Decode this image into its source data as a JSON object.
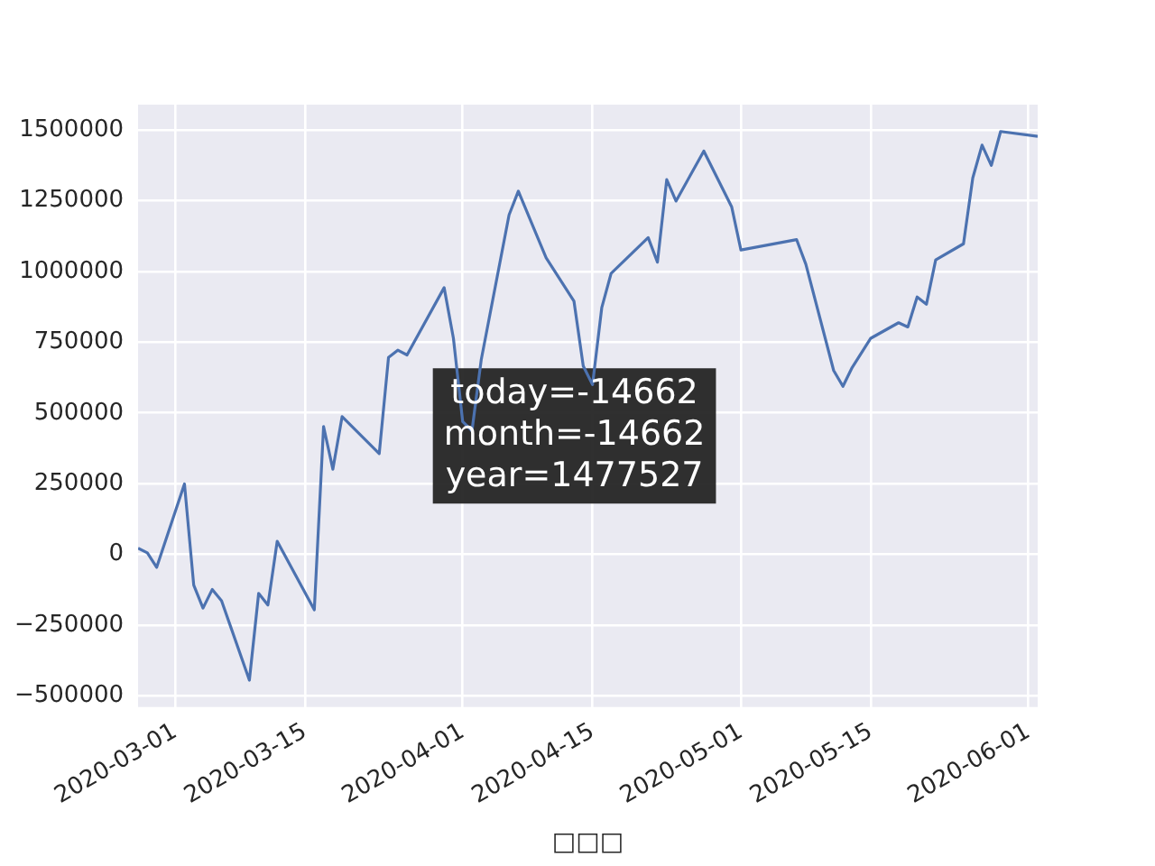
{
  "chart_data": {
    "type": "line",
    "xlabel": "□□□",
    "x": [
      "2020-02-26",
      "2020-02-27",
      "2020-02-28",
      "2020-03-02",
      "2020-03-03",
      "2020-03-04",
      "2020-03-05",
      "2020-03-06",
      "2020-03-09",
      "2020-03-10",
      "2020-03-11",
      "2020-03-12",
      "2020-03-16",
      "2020-03-17",
      "2020-03-18",
      "2020-03-19",
      "2020-03-23",
      "2020-03-24",
      "2020-03-25",
      "2020-03-26",
      "2020-03-30",
      "2020-03-31",
      "2020-04-01",
      "2020-04-02",
      "2020-04-03",
      "2020-04-06",
      "2020-04-07",
      "2020-04-10",
      "2020-04-13",
      "2020-04-14",
      "2020-04-15",
      "2020-04-16",
      "2020-04-17",
      "2020-04-21",
      "2020-04-22",
      "2020-04-23",
      "2020-04-24",
      "2020-04-27",
      "2020-04-30",
      "2020-05-01",
      "2020-05-07",
      "2020-05-08",
      "2020-05-11",
      "2020-05-12",
      "2020-05-13",
      "2020-05-15",
      "2020-05-18",
      "2020-05-19",
      "2020-05-20",
      "2020-05-21",
      "2020-05-22",
      "2020-05-25",
      "2020-05-26",
      "2020-05-27",
      "2020-05-28",
      "2020-05-29",
      "2020-06-02"
    ],
    "series": [
      {
        "color": "#4c72b0",
        "values": [
          22000,
          5000,
          -46000,
          249000,
          -109000,
          -190000,
          -124000,
          -164000,
          -445000,
          -138000,
          -179000,
          46000,
          -196000,
          452000,
          301000,
          487000,
          356000,
          696000,
          722000,
          705000,
          943000,
          764000,
          469000,
          437000,
          688000,
          1200000,
          1284000,
          1048000,
          895000,
          666000,
          600000,
          873000,
          993000,
          1120000,
          1033000,
          1325000,
          1249000,
          1426000,
          1229000,
          1076000,
          1113000,
          1026000,
          650000,
          594000,
          661000,
          764000,
          819000,
          804000,
          910000,
          884000,
          1041000,
          1098000,
          1331000,
          1447000,
          1375000,
          1495000,
          1478000
        ]
      }
    ],
    "xlim": [
      "2020-02-26",
      "2020-06-02"
    ],
    "xticks": [
      "2020-03-01",
      "2020-03-15",
      "2020-04-01",
      "2020-04-15",
      "2020-05-01",
      "2020-05-15",
      "2020-06-01"
    ],
    "ylim": [
      -540000,
      1590000
    ],
    "yticks": [
      -500000,
      -250000,
      0,
      250000,
      500000,
      750000,
      1000000,
      1250000,
      1500000
    ],
    "grid": true,
    "legend": false,
    "annotations": [
      "today=-14662\nmonth=-14662\nyear=1477527"
    ]
  }
}
